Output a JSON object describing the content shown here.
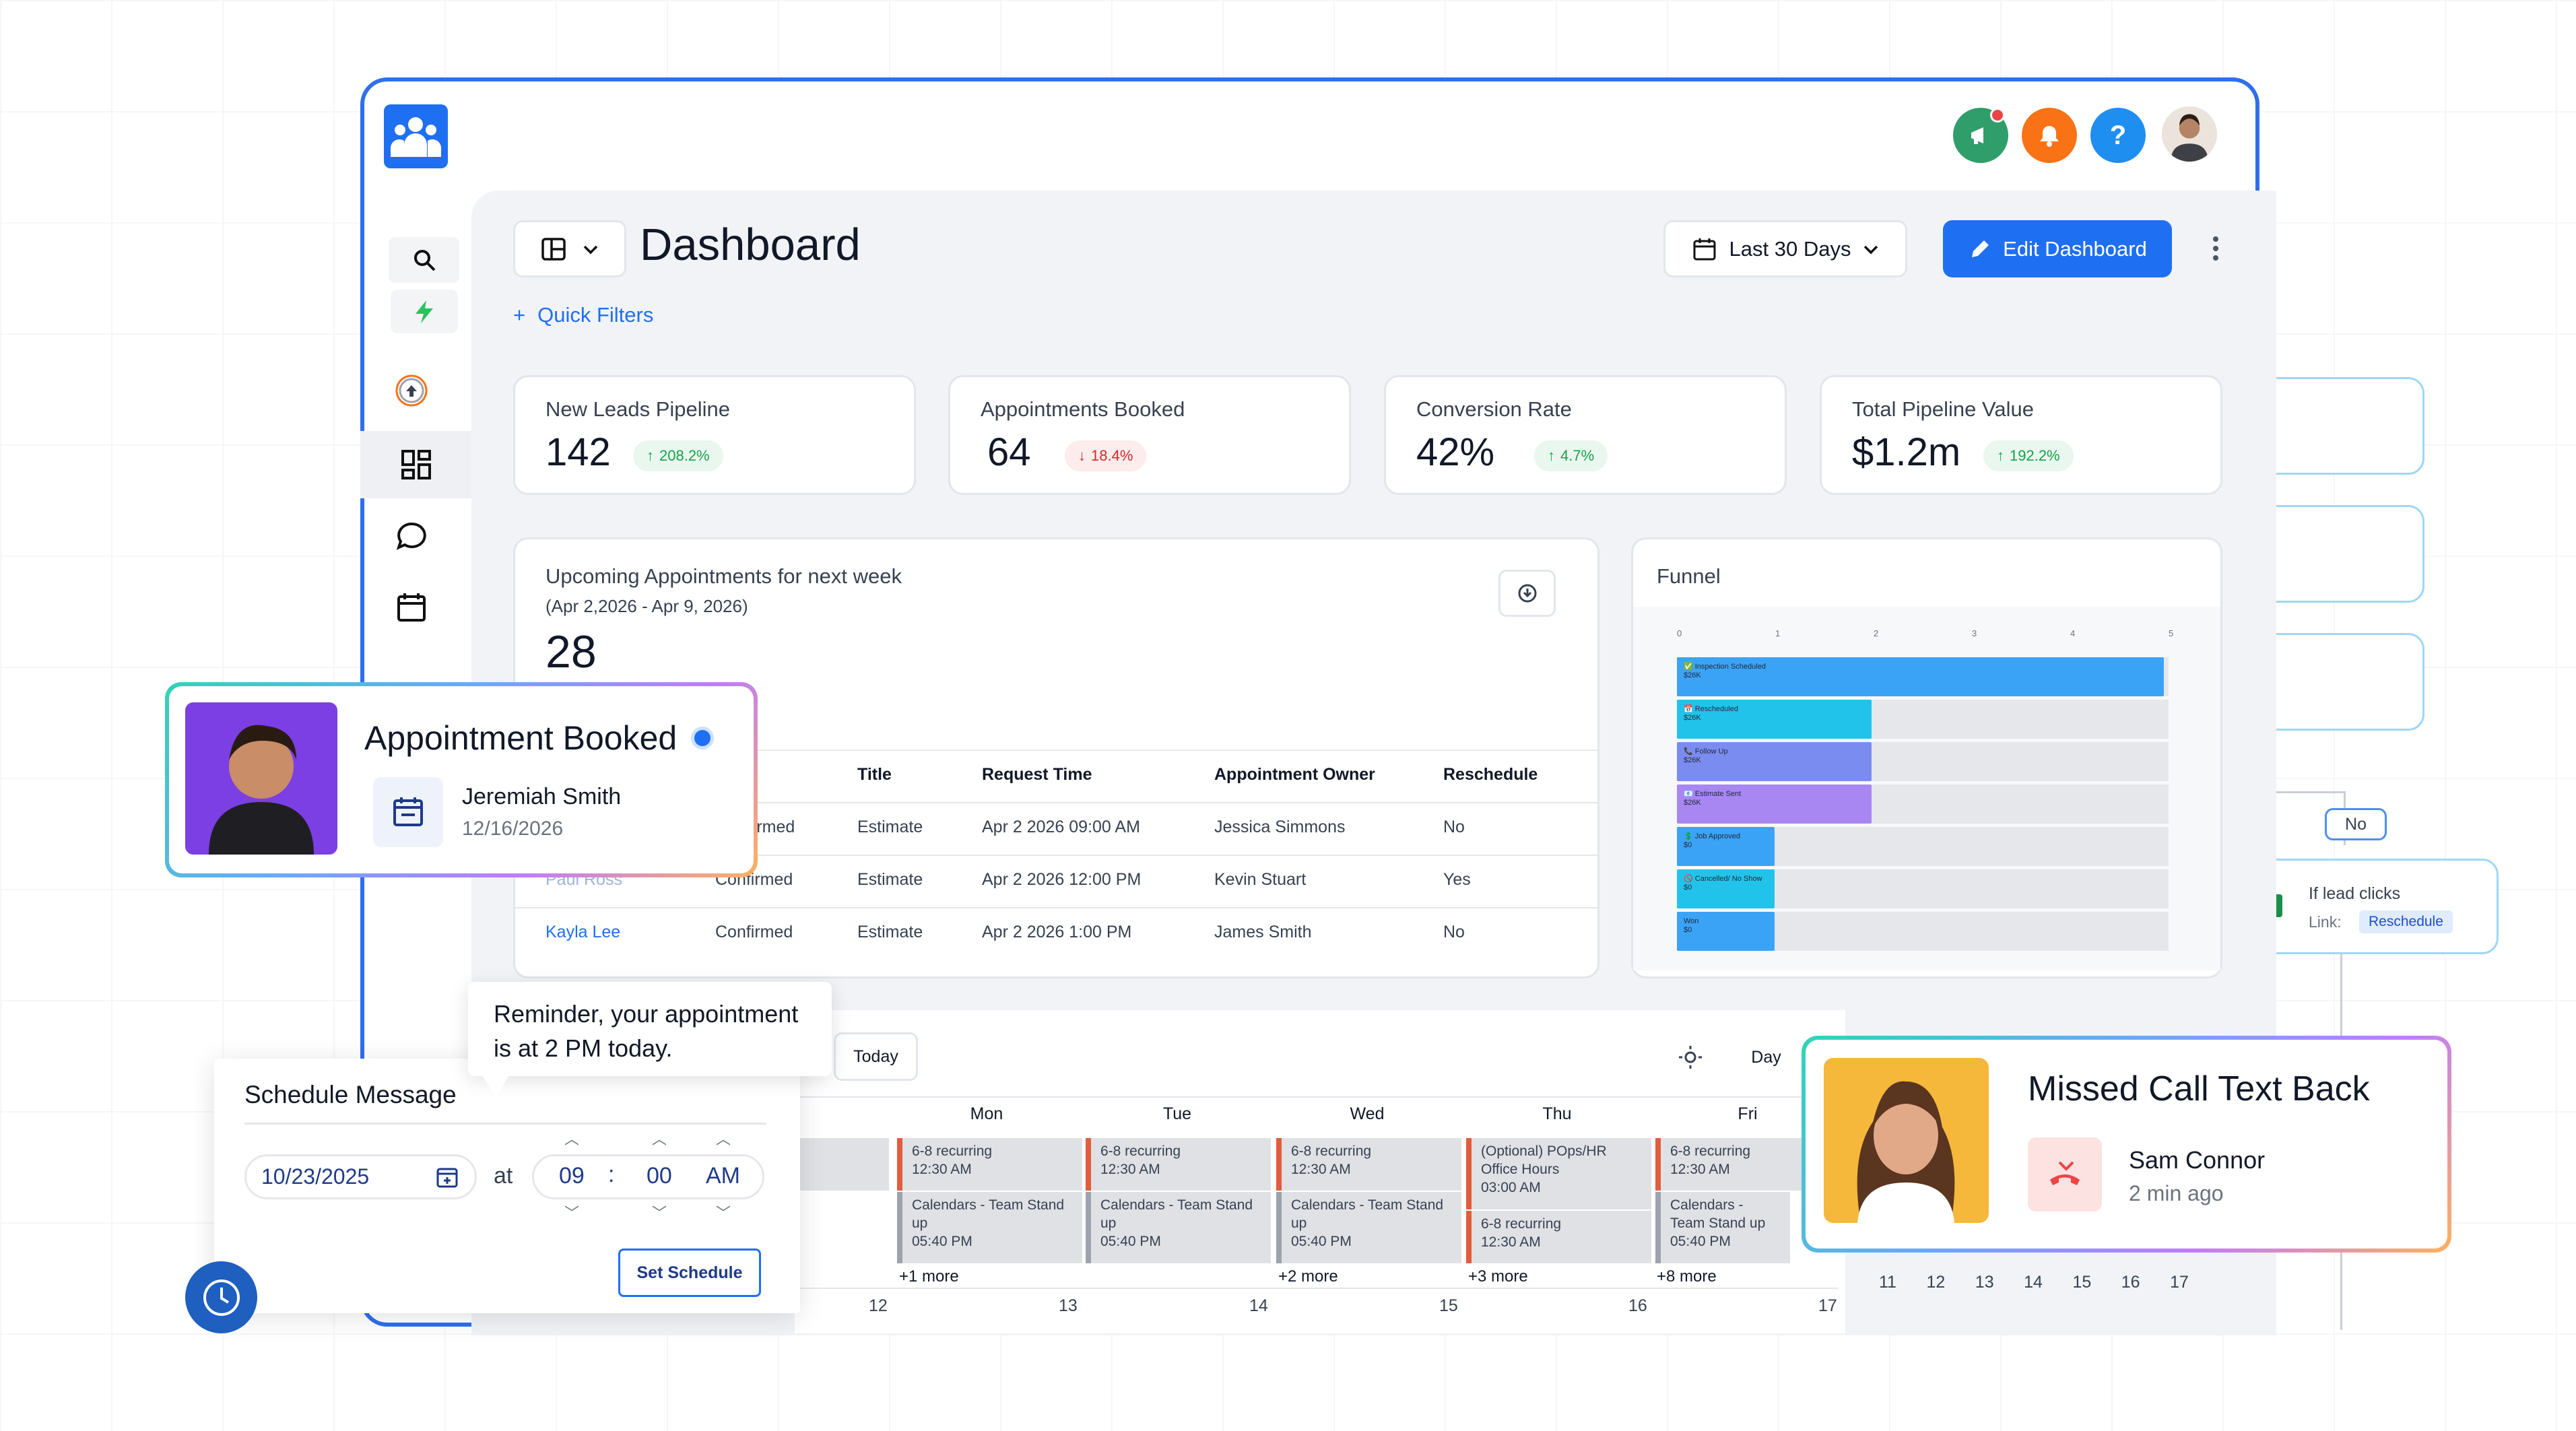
{
  "header": {
    "title": "Dashboard",
    "date_range": "Last 30 Days",
    "edit_label": "Edit Dashboard",
    "quick_filters": "Quick Filters"
  },
  "kpis": [
    {
      "title": "New Leads Pipeline",
      "value": "142",
      "change": "208.2%",
      "direction": "up"
    },
    {
      "title": "Appointments Booked",
      "value": "64",
      "change": "18.4%",
      "direction": "down"
    },
    {
      "title": "Conversion Rate",
      "value": "42%",
      "change": "4.7%",
      "direction": "up"
    },
    {
      "title": "Total Pipeline Value",
      "value": "$1.2m",
      "change": "192.2%",
      "direction": "up"
    }
  ],
  "appointments": {
    "title": "Upcoming Appointments for next week",
    "range": "(Apr 2,2026 - Apr 9, 2026)",
    "count": "28",
    "columns": [
      "s",
      "Title",
      "Request Time",
      "Appointment Owner",
      "Reschedule"
    ],
    "rows": [
      {
        "name": "",
        "status": "Confirmed",
        "title": "Estimate",
        "time": "Apr 2 2026 09:00 AM",
        "owner": "Jessica Simmons",
        "reschedule": "No"
      },
      {
        "name": "Paul Ross",
        "status": "Confirmed",
        "title": "Estimate",
        "time": "Apr 2 2026 12:00 PM",
        "owner": "Kevin Stuart",
        "reschedule": "Yes"
      },
      {
        "name": "Kayla Lee",
        "status": "Confirmed",
        "title": "Estimate",
        "time": "Apr 2 2026 1:00 PM",
        "owner": "James Smith",
        "reschedule": "No"
      }
    ]
  },
  "funnel": {
    "title": "Funnel",
    "axis_ticks": [
      "0",
      "1",
      "2",
      "3",
      "4",
      "5"
    ],
    "stages": [
      {
        "label": "Inspection Scheduled",
        "value": "$26K",
        "level": 5,
        "color": "#3ba3f5",
        "icon": "✅"
      },
      {
        "label": "Rescheduled",
        "value": "$26K",
        "level": 2,
        "color": "#22c3ea",
        "icon": "📅"
      },
      {
        "label": "Follow Up",
        "value": "$26K",
        "level": 2,
        "color": "#7b8cf0",
        "icon": "📞"
      },
      {
        "label": "Estimate Sent",
        "value": "$26K",
        "level": 2,
        "color": "#a887f2",
        "icon": "📧"
      },
      {
        "label": "Job Approved",
        "value": "$0",
        "level": 1,
        "color": "#3ba3f5",
        "icon": "💲"
      },
      {
        "label": "Cancelled/ No Show",
        "value": "$0",
        "level": 1,
        "color": "#22c3ea",
        "icon": "🚫"
      },
      {
        "label": "Won",
        "value": "$0",
        "level": 1,
        "color": "#3ba3f5",
        "icon": ""
      }
    ]
  },
  "calendar": {
    "today": "Today",
    "view": "Day",
    "days": [
      "n",
      "Mon",
      "Tue",
      "Wed",
      "Thu",
      "Fri"
    ],
    "mon": {
      "ev1": "6-8 recurring",
      "ev1_time": "12:30 AM",
      "ev2": "Calendars - Team Stand up",
      "ev2_time": "05:40 PM",
      "more": "+1 more"
    },
    "tue": {
      "ev1": "6-8 recurring",
      "ev1_time": "12:30 AM",
      "ev2": "Calendars - Team Stand up",
      "ev2_time": "05:40 PM"
    },
    "wed": {
      "ev1": "6-8 recurring",
      "ev1_time": "12:30 AM",
      "ev2": "Calendars - Team Stand up",
      "ev2_time": "05:40 PM",
      "more": "+2 more"
    },
    "thu": {
      "ev1": "(Optional) POps/HR Office Hours",
      "ev1_time": "03:00 AM",
      "ev2": "6-8 recurring",
      "ev2_time": "12:30 AM",
      "more": "+3 more"
    },
    "fri": {
      "ev1": "6-8 recurring",
      "ev1_time": "12:30 AM",
      "ev2": "Calendars - Team Stand up",
      "ev2_time": "05:40 PM",
      "more": "+8 more"
    },
    "day_numbers": [
      "12",
      "13",
      "14",
      "15",
      "16",
      "17"
    ],
    "mini_numbers": [
      "11",
      "12",
      "13",
      "14",
      "15",
      "16",
      "17"
    ]
  },
  "appointment_booked": {
    "title": "Appointment Booked",
    "name": "Jeremiah Smith",
    "date": "12/16/2026"
  },
  "reminder": {
    "text": "Reminder, your appointment is at 2 PM today."
  },
  "schedule": {
    "title": "Schedule Message",
    "date": "10/23/2025",
    "at": "at",
    "hour": "09",
    "sep": ":",
    "minute": "00",
    "ampm": "AM",
    "button": "Set Schedule"
  },
  "missed_call": {
    "title": "Missed Call Text Back",
    "name": "Sam Connor",
    "time": "2 min ago"
  },
  "workflow": {
    "no": "No",
    "lead_clicks": "If lead clicks",
    "link_label": "Link:",
    "link_value": "Reschedule"
  },
  "colors": {
    "primary": "#1f6ff2",
    "accent_green": "#16a34a",
    "accent_red": "#dc2626"
  }
}
